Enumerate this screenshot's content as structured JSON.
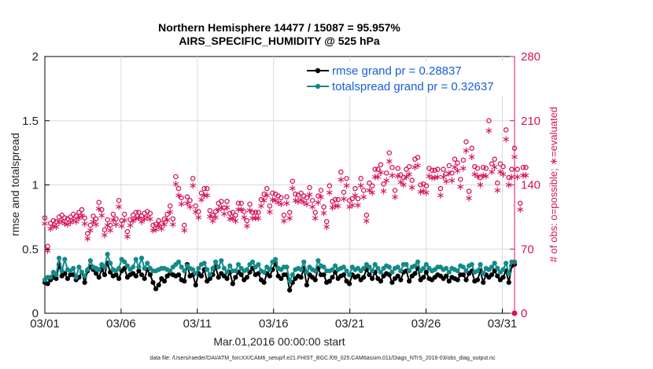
{
  "chart_data": {
    "type": "line",
    "title_line1": "Northern Hemisphere 14477 / 15087 = 95.957%",
    "title_line2": "AIRS_SPECIFIC_HUMIDITY @ 525 hPa",
    "xlabel": "Mar.01,2016 00:00:00 start",
    "ylabel_left": "rmse and totalspread",
    "ylabel_right": "# of obs: o=possible; ∗=evaluated",
    "footer": "data file: /Users/raeder/DAI/ATM_forcXX/CAM6_setup/f.e21.FHIST_BGC.f09_025.CAM6assim.011/Diags_NTrS_2016-03/obs_diag_output.nc",
    "x_ticks": [
      "03/01",
      "03/06",
      "03/11",
      "03/16",
      "03/21",
      "03/26",
      "03/31"
    ],
    "x_tick_days": [
      1,
      6,
      11,
      16,
      21,
      26,
      31
    ],
    "xlim": [
      1,
      31.8
    ],
    "ylim_left": [
      0,
      2
    ],
    "y_ticks_left": [
      "0",
      "0.5",
      "1",
      "1.5",
      "2"
    ],
    "ylim_right": [
      0,
      280
    ],
    "y_ticks_right": [
      "0",
      "70",
      "140",
      "210",
      "280"
    ],
    "left_axis_color": "#000000",
    "right_axis_color": "#d4145a",
    "legend": [
      {
        "label": "rmse grand pr = 0.28837",
        "color": "#000000"
      },
      {
        "label": "totalspread grand pr = 0.32637",
        "color": "#138a8a"
      }
    ],
    "series": [
      {
        "name": "rmse grand pr = 0.28837",
        "color": "#000000",
        "values": [
          0.24,
          0.23,
          0.26,
          0.28,
          0.27,
          0.38,
          0.29,
          0.31,
          0.27,
          0.3,
          0.3,
          0.26,
          0.28,
          0.32,
          0.24,
          0.33,
          0.36,
          0.34,
          0.31,
          0.28,
          0.34,
          0.3,
          0.39,
          0.32,
          0.29,
          0.3,
          0.27,
          0.33,
          0.35,
          0.28,
          0.3,
          0.31,
          0.29,
          0.33,
          0.3,
          0.27,
          0.34,
          0.3,
          0.24,
          0.19,
          0.22,
          0.27,
          0.25,
          0.29,
          0.31,
          0.3,
          0.29,
          0.3,
          0.26,
          0.25,
          0.38,
          0.29,
          0.3,
          0.22,
          0.31,
          0.29,
          0.34,
          0.25,
          0.27,
          0.3,
          0.36,
          0.28,
          0.31,
          0.29,
          0.27,
          0.32,
          0.23,
          0.28,
          0.32,
          0.3,
          0.26,
          0.28,
          0.32,
          0.35,
          0.3,
          0.31,
          0.26,
          0.24,
          0.31,
          0.29,
          0.34,
          0.39,
          0.29,
          0.27,
          0.3,
          0.3,
          0.18,
          0.24,
          0.27,
          0.29,
          0.28,
          0.35,
          0.22,
          0.3,
          0.28,
          0.26,
          0.35,
          0.3,
          0.3,
          0.24,
          0.25,
          0.28,
          0.32,
          0.27,
          0.29,
          0.3,
          0.25,
          0.23,
          0.3,
          0.28,
          0.29,
          0.26,
          0.28,
          0.34,
          0.3,
          0.27,
          0.32,
          0.27,
          0.25,
          0.29,
          0.31,
          0.3,
          0.24,
          0.27,
          0.29,
          0.26,
          0.32,
          0.33,
          0.25,
          0.29,
          0.31,
          0.35,
          0.26,
          0.28,
          0.32,
          0.27,
          0.26,
          0.28,
          0.3,
          0.29,
          0.27,
          0.29,
          0.25,
          0.28,
          0.27,
          0.26,
          0.3,
          0.3,
          0.26,
          0.31,
          0.33,
          0.25,
          0.26,
          0.33,
          0.24,
          0.3,
          0.28,
          0.3,
          0.33,
          0.29,
          0.26,
          0.28,
          0.33,
          0.24,
          0.37,
          0.38
        ]
      },
      {
        "name": "totalspread grand pr = 0.32637",
        "color": "#138a8a",
        "values": [
          0.26,
          0.28,
          0.28,
          0.32,
          0.3,
          0.43,
          0.33,
          0.42,
          0.34,
          0.33,
          0.35,
          0.28,
          0.36,
          0.32,
          0.29,
          0.34,
          0.41,
          0.36,
          0.35,
          0.34,
          0.38,
          0.36,
          0.46,
          0.39,
          0.34,
          0.33,
          0.35,
          0.42,
          0.4,
          0.37,
          0.34,
          0.36,
          0.42,
          0.36,
          0.43,
          0.35,
          0.39,
          0.35,
          0.33,
          0.33,
          0.34,
          0.35,
          0.35,
          0.34,
          0.33,
          0.36,
          0.38,
          0.4,
          0.36,
          0.33,
          0.37,
          0.35,
          0.34,
          0.31,
          0.35,
          0.38,
          0.39,
          0.34,
          0.3,
          0.35,
          0.4,
          0.36,
          0.41,
          0.35,
          0.32,
          0.37,
          0.33,
          0.33,
          0.38,
          0.35,
          0.33,
          0.34,
          0.38,
          0.4,
          0.36,
          0.38,
          0.33,
          0.32,
          0.36,
          0.34,
          0.4,
          0.42,
          0.35,
          0.34,
          0.36,
          0.36,
          0.25,
          0.3,
          0.34,
          0.35,
          0.34,
          0.4,
          0.32,
          0.36,
          0.34,
          0.33,
          0.41,
          0.37,
          0.36,
          0.33,
          0.33,
          0.34,
          0.37,
          0.34,
          0.35,
          0.36,
          0.33,
          0.3,
          0.36,
          0.34,
          0.35,
          0.33,
          0.35,
          0.38,
          0.36,
          0.33,
          0.38,
          0.35,
          0.32,
          0.35,
          0.37,
          0.36,
          0.32,
          0.35,
          0.36,
          0.33,
          0.38,
          0.38,
          0.33,
          0.36,
          0.37,
          0.4,
          0.33,
          0.35,
          0.38,
          0.35,
          0.33,
          0.34,
          0.36,
          0.36,
          0.34,
          0.35,
          0.32,
          0.35,
          0.34,
          0.33,
          0.37,
          0.36,
          0.33,
          0.37,
          0.38,
          0.32,
          0.33,
          0.38,
          0.31,
          0.35,
          0.34,
          0.36,
          0.39,
          0.35,
          0.32,
          0.34,
          0.39,
          0.31,
          0.4,
          0.4
        ]
      }
    ],
    "obs_possible": [
      104,
      73,
      98,
      101,
      100,
      105,
      107,
      104,
      103,
      105,
      108,
      106,
      110,
      113,
      104,
      87,
      96,
      106,
      103,
      121,
      113,
      91,
      102,
      96,
      108,
      103,
      123,
      101,
      108,
      89,
      102,
      107,
      110,
      110,
      106,
      109,
      111,
      109,
      96,
      97,
      101,
      98,
      103,
      108,
      117,
      103,
      149,
      136,
      126,
      96,
      127,
      123,
      147,
      117,
      111,
      131,
      136,
      136,
      112,
      107,
      111,
      120,
      122,
      115,
      122,
      109,
      110,
      107,
      120,
      120,
      111,
      101,
      119,
      110,
      110,
      110,
      124,
      130,
      136,
      117,
      131,
      130,
      128,
      126,
      107,
      127,
      110,
      144,
      130,
      129,
      131,
      128,
      126,
      137,
      123,
      110,
      128,
      134,
      116,
      100,
      139,
      122,
      124,
      124,
      154,
      132,
      147,
      123,
      125,
      136,
      125,
      147,
      134,
      107,
      142,
      139,
      157,
      157,
      162,
      141,
      153,
      175,
      159,
      134,
      158,
      151,
      148,
      157,
      160,
      145,
      168,
      170,
      140,
      141,
      139,
      158,
      156,
      156,
      157,
      136,
      157,
      152,
      161,
      153,
      168,
      164,
      146,
      167,
      187,
      133,
      180,
      160,
      158,
      148,
      159,
      158,
      210,
      163,
      168,
      142,
      163,
      160,
      200,
      148,
      157,
      180,
      157,
      120,
      159,
      159
    ]
  }
}
